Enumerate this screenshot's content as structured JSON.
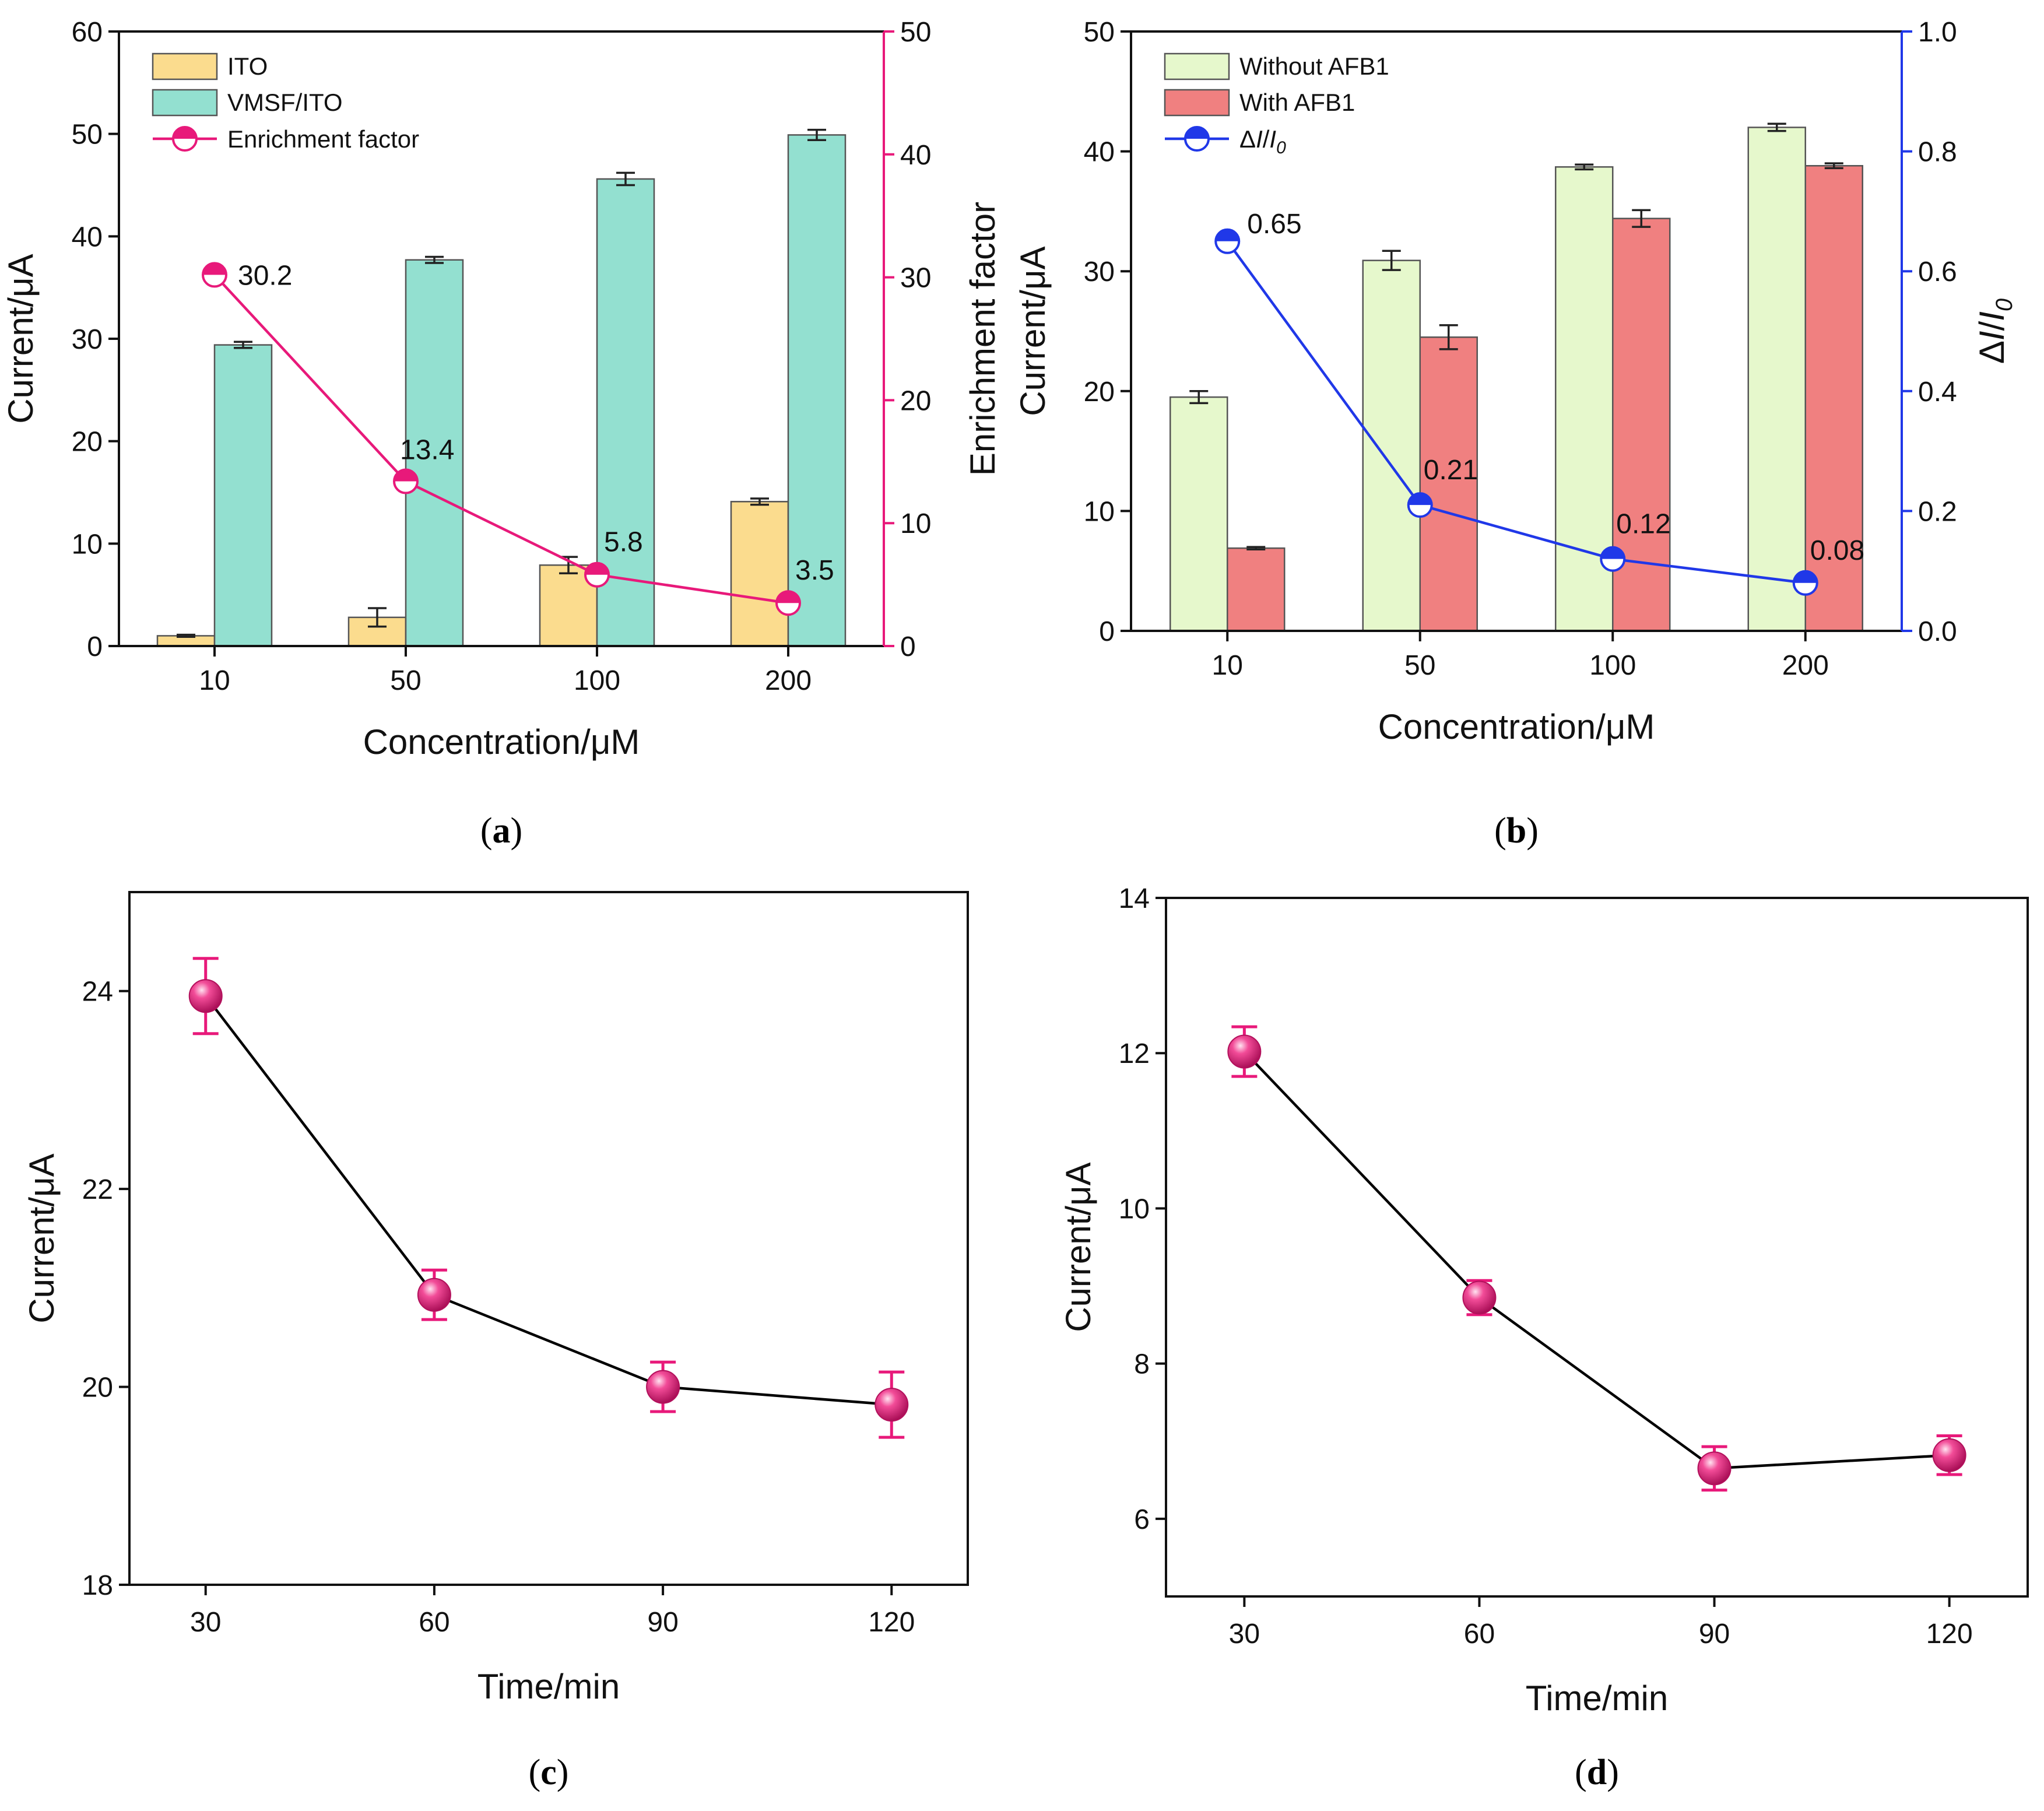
{
  "chart_data": [
    {
      "panel": "a",
      "caption_open": "(",
      "caption_letter": "a",
      "caption_close": ")",
      "type": "bar",
      "categories": [
        "10",
        "50",
        "100",
        "200"
      ],
      "series": [
        {
          "name": "ITO",
          "axis": "left",
          "color": "#fbdc8e",
          "values": [
            1.0,
            2.8,
            7.9,
            14.1
          ],
          "errors": [
            0.1,
            0.9,
            0.8,
            0.3
          ]
        },
        {
          "name": "VMSF/ITO",
          "axis": "left",
          "color": "#93e0d0",
          "values": [
            29.4,
            37.7,
            45.6,
            49.9
          ],
          "errors": [
            0.3,
            0.3,
            0.6,
            0.5
          ]
        }
      ],
      "line_series": {
        "name": "Enrichment factor",
        "axis": "right",
        "color": "#e8197a",
        "values": [
          30.2,
          13.4,
          5.8,
          3.5
        ],
        "labels": [
          "30.2",
          "13.4",
          "5.8",
          "3.5"
        ]
      },
      "xlabel": "Concentration/μM",
      "ylabel": "Current/μA",
      "ylabel_right": "Enrichment factor",
      "ylim": [
        0,
        60
      ],
      "yticks": [
        "0",
        "10",
        "20",
        "30",
        "40",
        "50",
        "60"
      ],
      "ylim_right": [
        0,
        50
      ],
      "yticks_right": [
        "0",
        "10",
        "20",
        "30",
        "40",
        "50"
      ],
      "legend_position": "top-left"
    },
    {
      "panel": "b",
      "caption_open": "(",
      "caption_letter": "b",
      "caption_close": ")",
      "type": "bar",
      "categories": [
        "10",
        "50",
        "100",
        "200"
      ],
      "series": [
        {
          "name": "Without AFB1",
          "axis": "left",
          "color": "#e6f8cc",
          "values": [
            19.5,
            30.9,
            38.7,
            42.0
          ],
          "errors": [
            0.5,
            0.8,
            0.2,
            0.3
          ]
        },
        {
          "name": "With AFB1",
          "axis": "left",
          "color": "#f08080",
          "values": [
            6.9,
            24.5,
            34.4,
            38.8
          ],
          "errors": [
            0.1,
            1.0,
            0.7,
            0.2
          ]
        }
      ],
      "line_series": {
        "name": "ΔI/I0",
        "axis": "right",
        "color": "#2038e8",
        "values": [
          0.65,
          0.21,
          0.12,
          0.08
        ],
        "labels": [
          "0.65",
          "0.21",
          "0.12",
          "0.08"
        ]
      },
      "xlabel": "Concentration/μM",
      "ylabel": "Current/μA",
      "ylabel_right": "ΔI/I0",
      "ylim": [
        0,
        50
      ],
      "yticks": [
        "0",
        "10",
        "20",
        "30",
        "40",
        "50"
      ],
      "ylim_right": [
        0,
        1.0
      ],
      "yticks_right": [
        "0.0",
        "0.2",
        "0.4",
        "0.6",
        "0.8",
        "1.0"
      ],
      "legend_position": "top-left"
    },
    {
      "panel": "c",
      "caption_open": "(",
      "caption_letter": "c",
      "caption_close": ")",
      "type": "scatter",
      "x": [
        30,
        60,
        90,
        120
      ],
      "xticks": [
        "30",
        "60",
        "90",
        "120"
      ],
      "y": [
        23.95,
        20.93,
        20.0,
        19.82
      ],
      "errors": [
        0.38,
        0.25,
        0.25,
        0.33
      ],
      "xlabel": "Time/min",
      "ylabel": "Current/μA",
      "xlim": [
        20,
        130
      ],
      "ylim": [
        18,
        25
      ],
      "yticks": [
        "18",
        "20",
        "22",
        "24"
      ],
      "marker_color": "#e8197a",
      "line_color": "#000000"
    },
    {
      "panel": "d",
      "caption_open": "(",
      "caption_letter": "d",
      "caption_close": ")",
      "type": "scatter",
      "x": [
        30,
        60,
        90,
        120
      ],
      "xticks": [
        "30",
        "60",
        "90",
        "120"
      ],
      "y": [
        12.02,
        8.85,
        6.65,
        6.82
      ],
      "errors": [
        0.32,
        0.22,
        0.28,
        0.25
      ],
      "xlabel": "Time/min",
      "ylabel": "Current/μA",
      "xlim": [
        20,
        130
      ],
      "ylim": [
        5,
        14
      ],
      "yticks": [
        "6",
        "8",
        "10",
        "12",
        "14"
      ],
      "marker_color": "#e8197a",
      "line_color": "#000000"
    }
  ]
}
